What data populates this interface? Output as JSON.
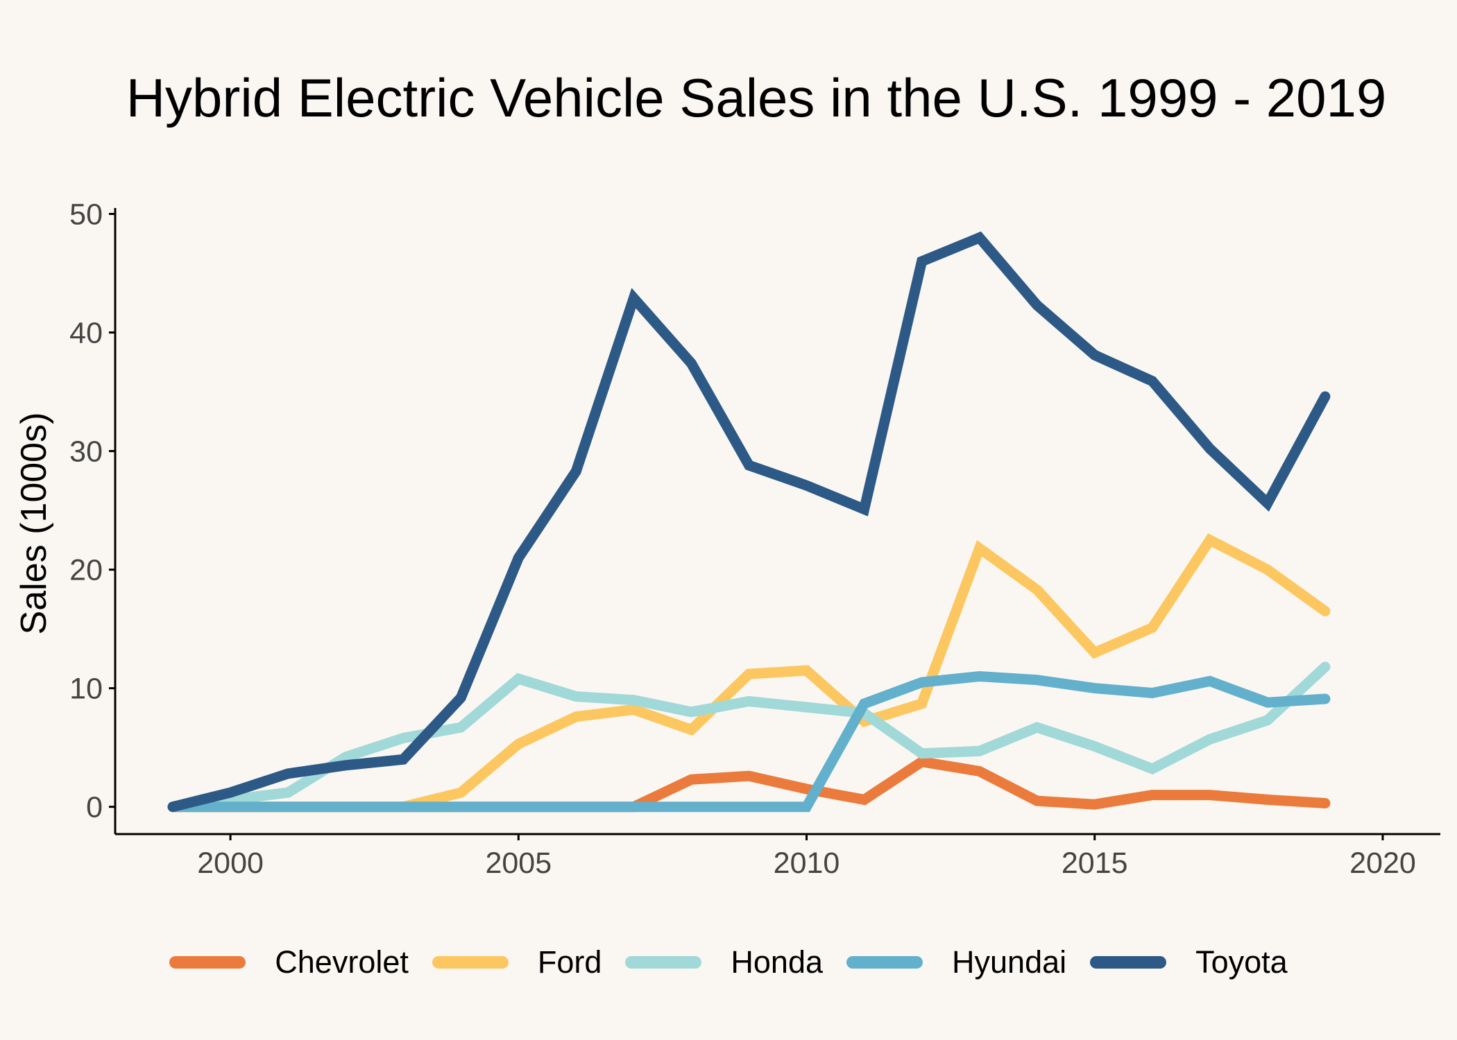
{
  "chart_data": {
    "type": "line",
    "title": "Hybrid Electric Vehicle Sales in the U.S. 1999 - 2019",
    "xlabel": "",
    "ylabel": "Sales (1000s)",
    "xlim": [
      1998,
      2021
    ],
    "ylim": [
      -2.3,
      50.5
    ],
    "x_ticks": [
      2000,
      2005,
      2010,
      2015,
      2020
    ],
    "y_ticks": [
      0,
      10,
      20,
      30,
      40,
      50
    ],
    "grid": false,
    "legend_position": "bottom",
    "x": [
      1999,
      2000,
      2001,
      2002,
      2003,
      2004,
      2005,
      2006,
      2007,
      2008,
      2009,
      2010,
      2011,
      2012,
      2013,
      2014,
      2015,
      2016,
      2017,
      2018,
      2019
    ],
    "series": [
      {
        "name": "Chevrolet",
        "color": "#eb7b3c",
        "values": [
          0,
          0,
          0,
          0,
          0,
          0,
          0,
          0,
          0,
          2.3,
          2.6,
          1.5,
          0.6,
          3.8,
          3.0,
          0.5,
          0.2,
          1.0,
          1.0,
          0.6,
          0.3
        ]
      },
      {
        "name": "Ford",
        "color": "#fcc760",
        "values": [
          0,
          0,
          0,
          0,
          0,
          1.2,
          5.3,
          7.6,
          8.2,
          6.5,
          11.2,
          11.5,
          7.2,
          8.7,
          21.8,
          18.3,
          13.0,
          15.1,
          22.5,
          20.0,
          16.5
        ]
      },
      {
        "name": "Honda",
        "color": "#a1d8d8",
        "values": [
          0,
          0.6,
          1.2,
          4.2,
          5.8,
          6.7,
          10.8,
          9.3,
          9.0,
          8.0,
          8.9,
          8.4,
          7.9,
          4.5,
          4.7,
          6.7,
          5.1,
          3.2,
          5.7,
          7.3,
          11.8
        ]
      },
      {
        "name": "Hyundai",
        "color": "#63b0cc",
        "values": [
          0,
          0,
          0,
          0,
          0,
          0,
          0,
          0,
          0,
          0,
          0,
          0,
          8.7,
          10.5,
          11.0,
          10.7,
          10.0,
          9.6,
          10.6,
          8.8,
          9.1
        ]
      },
      {
        "name": "Toyota",
        "color": "#2d5986",
        "values": [
          0,
          1.2,
          2.8,
          3.5,
          4.0,
          9.2,
          21.0,
          28.3,
          42.9,
          37.4,
          28.8,
          27.1,
          25.1,
          46.0,
          48.0,
          42.3,
          38.1,
          35.9,
          30.2,
          25.6,
          34.6
        ]
      }
    ]
  }
}
